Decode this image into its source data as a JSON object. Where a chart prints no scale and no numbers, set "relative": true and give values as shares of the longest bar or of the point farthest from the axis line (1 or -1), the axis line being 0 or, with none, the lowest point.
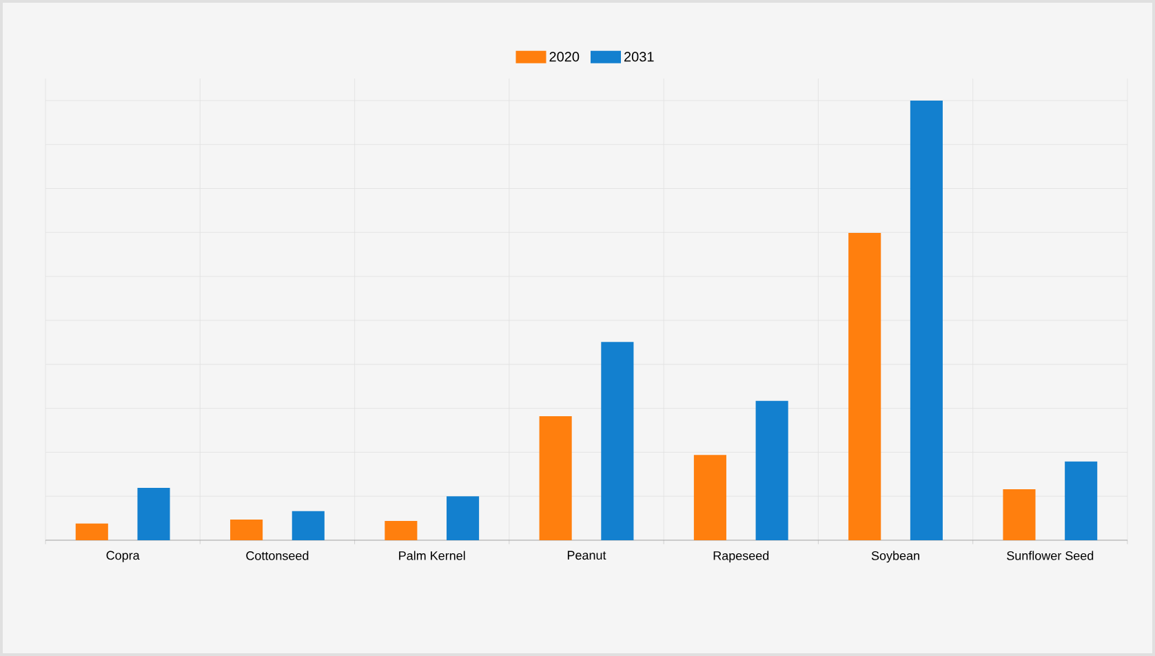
{
  "chart_data": {
    "type": "bar",
    "relative": true,
    "categories": [
      "Copra",
      "Cottonseed",
      "Palm Kernel",
      "Peanut",
      "Rapeseed",
      "Soybean",
      "Sunflower Seed"
    ],
    "series": [
      {
        "name": "2020",
        "color": "#ff7f0e",
        "values": [
          0.038,
          0.047,
          0.044,
          0.282,
          0.194,
          0.699,
          0.116
        ]
      },
      {
        "name": "2031",
        "color": "#1380cf",
        "values": [
          0.119,
          0.066,
          0.1,
          0.451,
          0.317,
          1,
          0.179
        ]
      }
    ],
    "grid": true,
    "legend": "top"
  }
}
